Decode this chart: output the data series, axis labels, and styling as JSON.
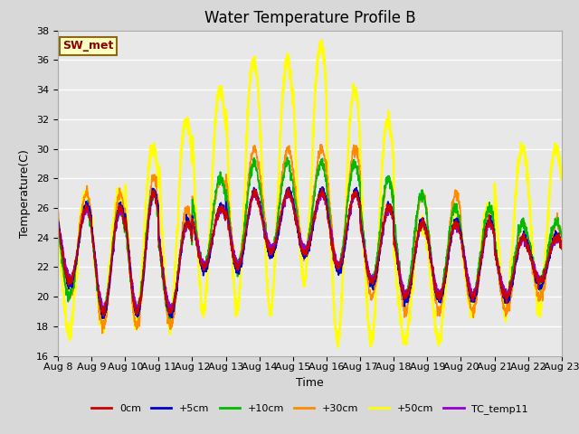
{
  "title": "Water Temperature Profile B",
  "xlabel": "Time",
  "ylabel": "Temperature(C)",
  "ylim": [
    16,
    38
  ],
  "yticks": [
    16,
    18,
    20,
    22,
    24,
    26,
    28,
    30,
    32,
    34,
    36,
    38
  ],
  "xtick_labels": [
    "Aug 8",
    "Aug 9",
    "Aug 10",
    "Aug 11",
    "Aug 12",
    "Aug 13",
    "Aug 14",
    "Aug 15",
    "Aug 16",
    "Aug 17",
    "Aug 18",
    "Aug 19",
    "Aug 20",
    "Aug 21",
    "Aug 22",
    "Aug 23"
  ],
  "annotation": "SW_met",
  "annotation_color": "#8B0000",
  "annotation_bg": "#FFFFC0",
  "annotation_border": "#8B6914",
  "bg_color": "#D8D8D8",
  "plot_bg": "#E8E8E8",
  "series": {
    "0cm": {
      "color": "#CC0000",
      "lw": 1.2
    },
    "+5cm": {
      "color": "#0000CC",
      "lw": 1.2
    },
    "+10cm": {
      "color": "#00BB00",
      "lw": 1.2
    },
    "+30cm": {
      "color": "#FF8C00",
      "lw": 1.2
    },
    "+50cm": {
      "color": "#FFFF00",
      "lw": 1.8
    },
    "TC_temp11": {
      "color": "#9400D3",
      "lw": 1.2
    }
  },
  "title_fontsize": 12,
  "tick_fontsize": 8,
  "label_fontsize": 9
}
